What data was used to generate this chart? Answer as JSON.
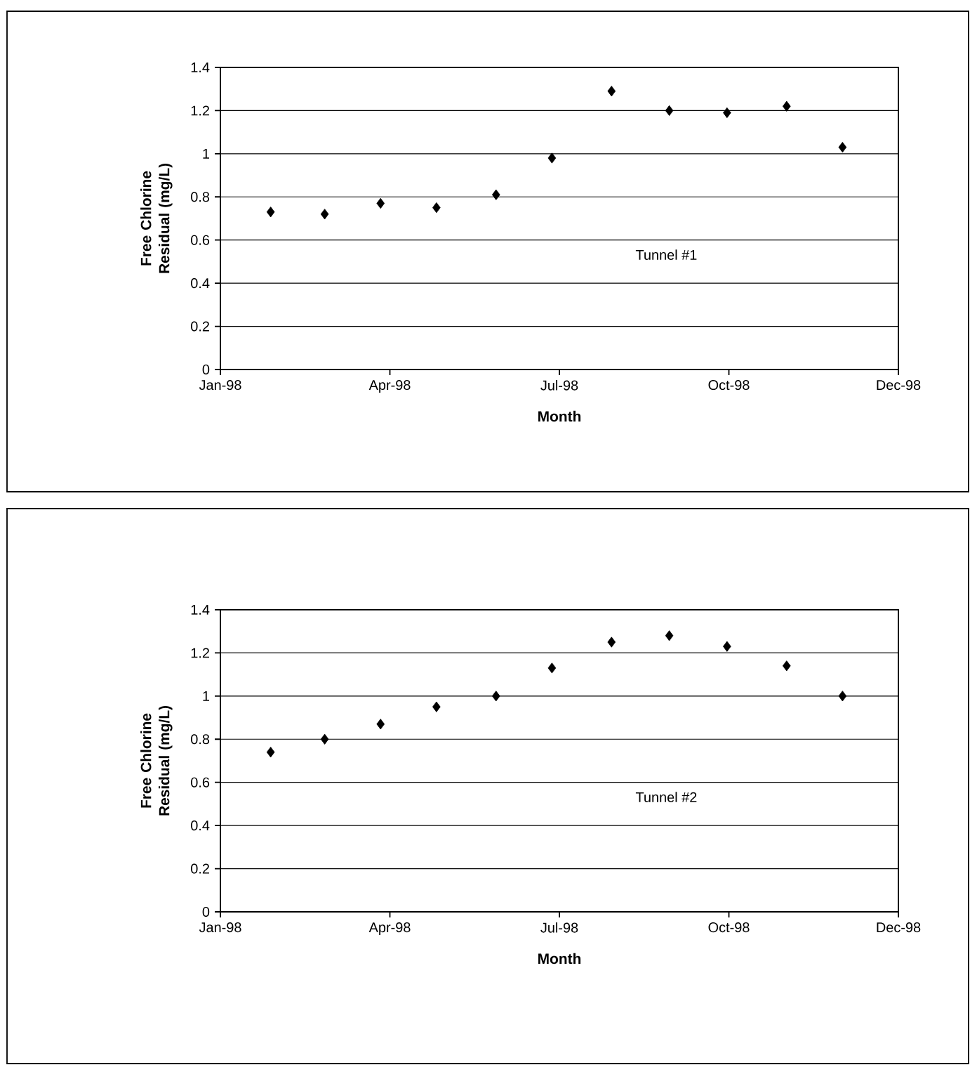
{
  "chart_data": [
    {
      "type": "scatter",
      "xlabel": "Month",
      "ylabel": "Free Chlorine Residual (mg/L)",
      "x": [
        "1998-01-28",
        "1998-02-26",
        "1998-03-28",
        "1998-04-27",
        "1998-05-29",
        "1998-06-28",
        "1998-07-30",
        "1998-08-30",
        "1998-09-30",
        "1998-11-01",
        "1998-12-01"
      ],
      "series": [
        {
          "name": "Tunnel #1",
          "color": "#000000",
          "values": [
            0.73,
            0.72,
            0.77,
            0.75,
            0.81,
            0.98,
            1.29,
            1.2,
            1.19,
            1.22,
            1.03
          ]
        }
      ],
      "xlim": [
        "1998-01-01",
        "1998-12-31"
      ],
      "xticks": [
        {
          "value": "1998-01-01",
          "label": "Jan-98"
        },
        {
          "value": "1998-04-02",
          "label": "Apr-98"
        },
        {
          "value": "1998-07-02",
          "label": "Jul-98"
        },
        {
          "value": "1998-10-01",
          "label": "Oct-98"
        },
        {
          "value": "1998-12-31",
          "label": "Dec-98"
        }
      ],
      "ylim": [
        0,
        1.4
      ],
      "yticks": [
        0,
        0.2,
        0.4,
        0.6,
        0.8,
        1,
        1.2,
        1.4
      ],
      "grid": "y",
      "marker": "diamond"
    },
    {
      "type": "scatter",
      "xlabel": "Month",
      "ylabel": "Free Chlorine Residual (mg/L)",
      "x": [
        "1998-01-28",
        "1998-02-26",
        "1998-03-28",
        "1998-04-27",
        "1998-05-29",
        "1998-06-28",
        "1998-07-30",
        "1998-08-30",
        "1998-09-30",
        "1998-11-01",
        "1998-12-01"
      ],
      "series": [
        {
          "name": "Tunnel #2",
          "color": "#000000",
          "values": [
            0.74,
            0.8,
            0.87,
            0.95,
            1.0,
            1.13,
            1.25,
            1.28,
            1.23,
            1.14,
            1.0
          ]
        }
      ],
      "xlim": [
        "1998-01-01",
        "1998-12-31"
      ],
      "xticks": [
        {
          "value": "1998-01-01",
          "label": "Jan-98"
        },
        {
          "value": "1998-04-02",
          "label": "Apr-98"
        },
        {
          "value": "1998-07-02",
          "label": "Jul-98"
        },
        {
          "value": "1998-10-01",
          "label": "Oct-98"
        },
        {
          "value": "1998-12-31",
          "label": "Dec-98"
        }
      ],
      "ylim": [
        0,
        1.4
      ],
      "yticks": [
        0,
        0.2,
        0.4,
        0.6,
        0.8,
        1,
        1.2,
        1.4
      ],
      "grid": "y",
      "marker": "diamond"
    }
  ]
}
